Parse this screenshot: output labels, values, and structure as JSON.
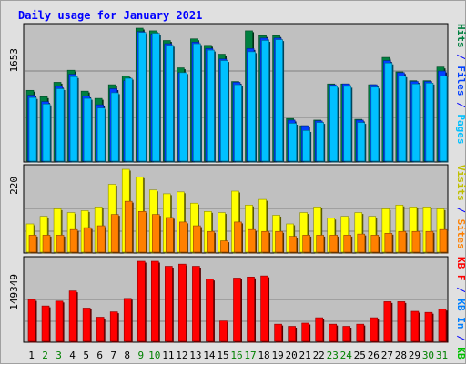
{
  "chart_data": {
    "title": "Daily usage for January 2021",
    "type": "bar",
    "categories": [
      "1",
      "2",
      "3",
      "4",
      "5",
      "6",
      "7",
      "8",
      "9",
      "10",
      "11",
      "12",
      "13",
      "14",
      "15",
      "16",
      "17",
      "18",
      "19",
      "20",
      "21",
      "22",
      "23",
      "24",
      "25",
      "26",
      "27",
      "28",
      "29",
      "30",
      "31"
    ],
    "weekend_days": [
      "2",
      "3",
      "9",
      "10",
      "16",
      "17",
      "23",
      "24",
      "30",
      "31"
    ],
    "panels": [
      {
        "id": "top",
        "max_label": "1653",
        "ylim": [
          0,
          1653
        ],
        "right_labels": [
          {
            "text": "Hits",
            "color": "#008040"
          },
          {
            "text": " / ",
            "color": "#0000ff"
          },
          {
            "text": "Files",
            "color": "#0040ff"
          },
          {
            "text": " / ",
            "color": "#0000ff"
          },
          {
            "text": "Pages",
            "color": "#00c0ff"
          }
        ],
        "series": [
          {
            "name": "Hits",
            "color": "#008040",
            "values": [
              880,
              800,
              980,
              1130,
              870,
              780,
              950,
              1060,
              1653,
              1620,
              1500,
              1160,
              1520,
              1440,
              1330,
              990,
              1620,
              1560,
              1560,
              530,
              440,
              510,
              960,
              960,
              520,
              950,
              1290,
              1110,
              1000,
              1000,
              1170
            ]
          },
          {
            "name": "Files",
            "color": "#0040ff",
            "values": [
              820,
              740,
              930,
              1080,
              810,
              700,
              900,
              1000,
              1610,
              1580,
              1460,
              1100,
              1480,
              1400,
              1270,
              980,
              1400,
              1530,
              1530,
              510,
              440,
              500,
              950,
              960,
              510,
              950,
              1250,
              1100,
              990,
              990,
              1120
            ]
          },
          {
            "name": "Pages",
            "color": "#00c0ff",
            "values": [
              790,
              710,
              900,
              1050,
              780,
              660,
              850,
              1030,
              1600,
              1590,
              1440,
              1100,
              1460,
              1380,
              1250,
              950,
              1360,
              1500,
              1510,
              470,
              380,
              480,
              930,
              930,
              480,
              920,
              1220,
              1060,
              960,
              970,
              1060
            ]
          }
        ]
      },
      {
        "id": "middle",
        "max_label": "220",
        "ylim": [
          0,
          220
        ],
        "right_labels": [
          {
            "text": "Visits",
            "color": "#c0c000"
          },
          {
            "text": " / ",
            "color": "#0000ff"
          },
          {
            "text": "Sites",
            "color": "#ff8000"
          }
        ],
        "series": [
          {
            "name": "Visits",
            "color": "#ffff00",
            "values": [
              75,
              95,
              115,
              105,
              110,
              120,
              180,
              220,
              200,
              165,
              155,
              160,
              130,
              108,
              105,
              162,
              125,
              140,
              98,
              75,
              105,
              120,
              90,
              95,
              105,
              95,
              115,
              125,
              120,
              120,
              115
            ]
          },
          {
            "name": "Sites",
            "color": "#ff8000",
            "values": [
              45,
              45,
              45,
              60,
              65,
              70,
              100,
              135,
              108,
              100,
              92,
              80,
              70,
              55,
              30,
              80,
              60,
              55,
              55,
              42,
              45,
              45,
              45,
              45,
              48,
              45,
              50,
              55,
              55,
              55,
              60
            ]
          }
        ]
      },
      {
        "id": "bottom",
        "max_label": "149349",
        "ylim": [
          0,
          149349
        ],
        "right_labels": [
          {
            "text": "KB F",
            "color": "#ff0000"
          },
          {
            "text": " / ",
            "color": "#0000ff"
          },
          {
            "text": "KB In",
            "color": "#0080ff"
          },
          {
            "text": " / ",
            "color": "#0000ff"
          },
          {
            "text": "KB Out",
            "color": "#00c000"
          }
        ],
        "series": [
          {
            "name": "KB F",
            "color": "#ff0000",
            "values": [
              78000,
              66000,
              75000,
              94000,
              62000,
              45000,
              55000,
              80000,
              149349,
              149349,
              140000,
              144000,
              140000,
              116000,
              38000,
              118000,
              120000,
              122000,
              32000,
              28000,
              34000,
              44000,
              32000,
              28000,
              32000,
              44000,
              74000,
              74000,
              56000,
              54000,
              60000
            ]
          }
        ]
      }
    ]
  }
}
